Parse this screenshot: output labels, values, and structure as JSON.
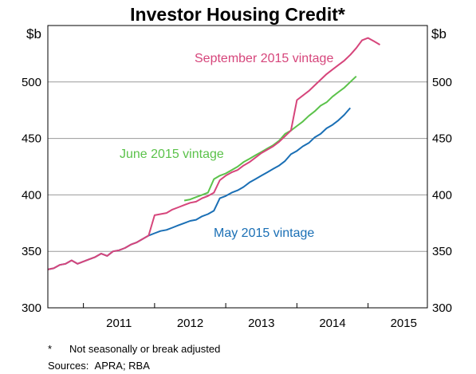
{
  "chart_data": {
    "type": "line",
    "title": "Investor Housing Credit*",
    "y_unit_left": "$b",
    "y_unit_right": "$b",
    "ylim": [
      300,
      550
    ],
    "yticks": [
      300,
      350,
      400,
      450,
      500
    ],
    "xlim": [
      "2010-07",
      "2015-11"
    ],
    "xticks": [
      {
        "label": "2011",
        "x": "2011-01"
      },
      {
        "label": "2012",
        "x": "2012-01"
      },
      {
        "label": "2013",
        "x": "2013-01"
      },
      {
        "label": "2014",
        "x": "2014-01"
      },
      {
        "label": "2015",
        "x": "2015-01"
      }
    ],
    "grid": "horizontal",
    "series": [
      {
        "name": "May 2015 vintage",
        "color": "#1a6fb5",
        "points": [
          [
            "2010-07",
            334
          ],
          [
            "2010-08",
            335
          ],
          [
            "2010-09",
            338
          ],
          [
            "2010-10",
            339
          ],
          [
            "2010-11",
            342
          ],
          [
            "2010-12",
            339
          ],
          [
            "2011-01",
            341
          ],
          [
            "2011-02",
            343
          ],
          [
            "2011-03",
            345
          ],
          [
            "2011-04",
            348
          ],
          [
            "2011-05",
            346
          ],
          [
            "2011-06",
            350
          ],
          [
            "2011-07",
            351
          ],
          [
            "2011-08",
            353
          ],
          [
            "2011-09",
            356
          ],
          [
            "2011-10",
            358
          ],
          [
            "2011-11",
            361
          ],
          [
            "2011-12",
            364
          ],
          [
            "2012-01",
            366
          ],
          [
            "2012-02",
            368
          ],
          [
            "2012-03",
            369
          ],
          [
            "2012-04",
            371
          ],
          [
            "2012-05",
            373
          ],
          [
            "2012-06",
            375
          ],
          [
            "2012-07",
            377
          ],
          [
            "2012-08",
            378
          ],
          [
            "2012-09",
            381
          ],
          [
            "2012-10",
            383
          ],
          [
            "2012-11",
            386
          ],
          [
            "2012-12",
            397
          ],
          [
            "2013-01",
            399
          ],
          [
            "2013-02",
            402
          ],
          [
            "2013-03",
            404
          ],
          [
            "2013-04",
            407
          ],
          [
            "2013-05",
            411
          ],
          [
            "2013-06",
            414
          ],
          [
            "2013-07",
            417
          ],
          [
            "2013-08",
            420
          ],
          [
            "2013-09",
            423
          ],
          [
            "2013-10",
            426
          ],
          [
            "2013-11",
            430
          ],
          [
            "2013-12",
            436
          ],
          [
            "2014-01",
            439
          ],
          [
            "2014-02",
            443
          ],
          [
            "2014-03",
            446
          ],
          [
            "2014-04",
            451
          ],
          [
            "2014-05",
            454
          ],
          [
            "2014-06",
            459
          ],
          [
            "2014-07",
            462
          ],
          [
            "2014-08",
            466
          ],
          [
            "2014-09",
            471
          ],
          [
            "2014-10",
            477
          ]
        ]
      },
      {
        "name": "June 2015 vintage",
        "color": "#5bc24a",
        "points": [
          [
            "2012-06",
            395
          ],
          [
            "2012-07",
            396
          ],
          [
            "2012-08",
            398
          ],
          [
            "2012-09",
            400
          ],
          [
            "2012-10",
            402
          ],
          [
            "2012-11",
            414
          ],
          [
            "2012-12",
            417
          ],
          [
            "2013-01",
            419
          ],
          [
            "2013-02",
            422
          ],
          [
            "2013-03",
            425
          ],
          [
            "2013-04",
            429
          ],
          [
            "2013-05",
            432
          ],
          [
            "2013-06",
            435
          ],
          [
            "2013-07",
            438
          ],
          [
            "2013-08",
            441
          ],
          [
            "2013-09",
            444
          ],
          [
            "2013-10",
            448
          ],
          [
            "2013-11",
            454
          ],
          [
            "2013-12",
            457
          ],
          [
            "2014-01",
            461
          ],
          [
            "2014-02",
            465
          ],
          [
            "2014-03",
            470
          ],
          [
            "2014-04",
            474
          ],
          [
            "2014-05",
            479
          ],
          [
            "2014-06",
            482
          ],
          [
            "2014-07",
            487
          ],
          [
            "2014-08",
            491
          ],
          [
            "2014-09",
            495
          ],
          [
            "2014-10",
            500
          ],
          [
            "2014-11",
            505
          ]
        ]
      },
      {
        "name": "September 2015 vintage",
        "color": "#d6457b",
        "points": [
          [
            "2010-07",
            334
          ],
          [
            "2010-08",
            335
          ],
          [
            "2010-09",
            338
          ],
          [
            "2010-10",
            339
          ],
          [
            "2010-11",
            342
          ],
          [
            "2010-12",
            339
          ],
          [
            "2011-01",
            341
          ],
          [
            "2011-02",
            343
          ],
          [
            "2011-03",
            345
          ],
          [
            "2011-04",
            348
          ],
          [
            "2011-05",
            346
          ],
          [
            "2011-06",
            350
          ],
          [
            "2011-07",
            351
          ],
          [
            "2011-08",
            353
          ],
          [
            "2011-09",
            356
          ],
          [
            "2011-10",
            358
          ],
          [
            "2011-11",
            361
          ],
          [
            "2011-12",
            364
          ],
          [
            "2012-01",
            382
          ],
          [
            "2012-02",
            383
          ],
          [
            "2012-03",
            384
          ],
          [
            "2012-04",
            387
          ],
          [
            "2012-05",
            389
          ],
          [
            "2012-06",
            391
          ],
          [
            "2012-07",
            393
          ],
          [
            "2012-08",
            394
          ],
          [
            "2012-09",
            397
          ],
          [
            "2012-10",
            399
          ],
          [
            "2012-11",
            402
          ],
          [
            "2012-12",
            413
          ],
          [
            "2013-01",
            417
          ],
          [
            "2013-02",
            420
          ],
          [
            "2013-03",
            422
          ],
          [
            "2013-04",
            426
          ],
          [
            "2013-05",
            429
          ],
          [
            "2013-06",
            433
          ],
          [
            "2013-07",
            437
          ],
          [
            "2013-08",
            440
          ],
          [
            "2013-09",
            443
          ],
          [
            "2013-10",
            447
          ],
          [
            "2013-11",
            452
          ],
          [
            "2013-12",
            457
          ],
          [
            "2014-01",
            484
          ],
          [
            "2014-02",
            488
          ],
          [
            "2014-03",
            492
          ],
          [
            "2014-04",
            497
          ],
          [
            "2014-05",
            502
          ],
          [
            "2014-06",
            507
          ],
          [
            "2014-07",
            511
          ],
          [
            "2014-08",
            515
          ],
          [
            "2014-09",
            519
          ],
          [
            "2014-10",
            524
          ],
          [
            "2014-11",
            530
          ],
          [
            "2014-12",
            537
          ],
          [
            "2015-01",
            539
          ],
          [
            "2015-02",
            536
          ],
          [
            "2015-03",
            533
          ]
        ]
      }
    ],
    "annotations": [
      {
        "text": "September 2015 vintage",
        "series": 2
      },
      {
        "text": "June 2015 vintage",
        "series": 1
      },
      {
        "text": "May 2015 vintage",
        "series": 0
      }
    ]
  },
  "footnotes": [
    {
      "key": "*",
      "text": "Not seasonally or break adjusted"
    },
    {
      "key": "Sources:",
      "text": "APRA; RBA"
    }
  ]
}
